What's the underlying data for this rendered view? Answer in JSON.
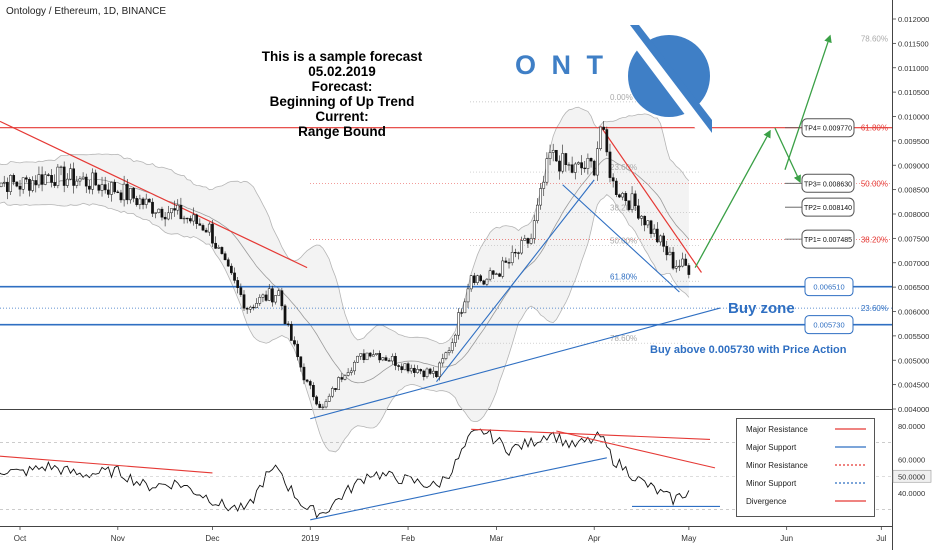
{
  "header": {
    "title": "Ontology / Ethereum, 1D, BINANCE"
  },
  "annotation": {
    "lines": [
      "This is a sample forecast",
      "05.02.2019",
      "Forecast:",
      "Beginning of Up Trend",
      "Current:",
      "Range Bound"
    ]
  },
  "brand": {
    "ticker_text": "O N T",
    "logo_color": "#3f7fc6"
  },
  "buy_zone": {
    "label": "Buy zone",
    "note": "Buy above 0.005730 with Price Action"
  },
  "colors": {
    "resistance": "#e53935",
    "support": "#2f6fc2",
    "forecast": "#3aa046",
    "price_line": "#000000",
    "fib_label": "#aaaaaa"
  },
  "chart_data": [
    {
      "type": "line",
      "title": "Ontology / Ethereum, 1D, BINANCE",
      "x_ticks": [
        "Oct",
        "Nov",
        "Dec",
        "2019",
        "Feb",
        "Mar",
        "Apr",
        "May",
        "Jun",
        "Jul"
      ],
      "y_ticks": [
        "0.012000",
        "0.011500",
        "0.011000",
        "0.010500",
        "0.010000",
        "0.009500",
        "0.009000",
        "0.008500",
        "0.008000",
        "0.007500",
        "0.007000",
        "0.006500",
        "0.006000",
        "0.005500",
        "0.005000",
        "0.004500",
        "0.004000"
      ],
      "ylim": [
        0.004,
        0.0123
      ],
      "approx_close_path": [
        [
          "Sep 21",
          0.0087
        ],
        [
          "Oct 1",
          0.0086
        ],
        [
          "Oct 10",
          0.0088
        ],
        [
          "Oct 20",
          0.0087
        ],
        [
          "Nov 1",
          0.0085
        ],
        [
          "Nov 10",
          0.0082
        ],
        [
          "Nov 20",
          0.008
        ],
        [
          "Nov 30",
          0.0077
        ],
        [
          "Dec 5",
          0.0069
        ],
        [
          "Dec 12",
          0.0061
        ],
        [
          "Dec 18",
          0.0063
        ],
        [
          "Dec 22",
          0.0064
        ],
        [
          "Dec 25",
          0.0056
        ],
        [
          "Dec 31",
          0.0045
        ],
        [
          "Jan 5",
          0.004
        ],
        [
          "Jan 12",
          0.0048
        ],
        [
          "Jan 20",
          0.0052
        ],
        [
          "Jan 31",
          0.0049
        ],
        [
          "Feb 10",
          0.0047
        ],
        [
          "Feb 15",
          0.0054
        ],
        [
          "Feb 21",
          0.0068
        ],
        [
          "Feb 25",
          0.0066
        ],
        [
          "Mar 5",
          0.007
        ],
        [
          "Mar 12",
          0.0075
        ],
        [
          "Mar 18",
          0.0092
        ],
        [
          "Mar 25",
          0.0089
        ],
        [
          "Apr 1",
          0.009
        ],
        [
          "Apr 3",
          0.0098
        ],
        [
          "Apr 7",
          0.0086
        ],
        [
          "Apr 15",
          0.0081
        ],
        [
          "Apr 22",
          0.0074
        ],
        [
          "Apr 26",
          0.007
        ],
        [
          "May 1",
          0.0069
        ]
      ],
      "fib_levels_left": [
        {
          "label": "0.00%",
          "value": 0.0103
        },
        {
          "label": "23.60%",
          "value": 0.00886
        },
        {
          "label": "38.20%",
          "value": 0.00803
        },
        {
          "label": "50.00%",
          "value": 0.00735
        },
        {
          "label": "61.80%",
          "value": 0.00662
        },
        {
          "label": "78.60%",
          "value": 0.00535
        }
      ],
      "fib_levels_right": [
        {
          "label": "78.60%",
          "value": 0.0116
        },
        {
          "label": "61.80%",
          "value": 0.00977
        },
        {
          "label": "50.00%",
          "value": 0.00863
        },
        {
          "label": "38.20%",
          "value": 0.00748
        },
        {
          "label": "23.60%",
          "value": 0.00607
        }
      ],
      "targets": [
        {
          "label": "TP4= 0.009770",
          "value": 0.00977
        },
        {
          "label": "TP3= 0.008630",
          "value": 0.00863
        },
        {
          "label": "TP2= 0.008140",
          "value": 0.00814
        },
        {
          "label": "TP1= 0.007485",
          "value": 0.007485
        }
      ],
      "buy_zone_levels": [
        {
          "label": "0.006510",
          "value": 0.00651
        },
        {
          "label": "0.005730",
          "value": 0.00573
        }
      ]
    },
    {
      "type": "line",
      "name": "Oscillator",
      "y_ticks": [
        "80.0000",
        "60.0000",
        "50.0000",
        "40.0000"
      ],
      "highlight_value": "50.0000",
      "ylim": [
        30,
        83
      ],
      "approx_path": [
        [
          "Sep 21",
          55
        ],
        [
          "Oct 1",
          52
        ],
        [
          "Oct 10",
          56
        ],
        [
          "Oct 20",
          51
        ],
        [
          "Nov 1",
          53
        ],
        [
          "Nov 10",
          44
        ],
        [
          "Nov 20",
          46
        ],
        [
          "Nov 30",
          37
        ],
        [
          "Dec 5",
          32
        ],
        [
          "Dec 12",
          30
        ],
        [
          "Dec 18",
          50
        ],
        [
          "Dec 22",
          55
        ],
        [
          "Dec 25",
          44
        ],
        [
          "Dec 31",
          30
        ],
        [
          "Jan 5",
          28
        ],
        [
          "Jan 12",
          40
        ],
        [
          "Jan 20",
          52
        ],
        [
          "Jan 31",
          48
        ],
        [
          "Feb 10",
          44
        ],
        [
          "Feb 15",
          54
        ],
        [
          "Feb 21",
          74
        ],
        [
          "Feb 25",
          77
        ],
        [
          "Mar 5",
          66
        ],
        [
          "Mar 12",
          70
        ],
        [
          "Mar 18",
          76
        ],
        [
          "Mar 25",
          68
        ],
        [
          "Apr 1",
          72
        ],
        [
          "Apr 3",
          74
        ],
        [
          "Apr 7",
          60
        ],
        [
          "Apr 15",
          48
        ],
        [
          "Apr 22",
          40
        ],
        [
          "Apr 26",
          36
        ],
        [
          "May 1",
          41
        ]
      ]
    }
  ],
  "legend": {
    "items": [
      {
        "label": "Major Resistance",
        "color": "#e53935",
        "style": "solid"
      },
      {
        "label": "Major Support",
        "color": "#2f6fc2",
        "style": "solid"
      },
      {
        "label": "Minor Resistance",
        "color": "#e53935",
        "style": "dotted"
      },
      {
        "label": "Minor Support",
        "color": "#2f6fc2",
        "style": "dotted"
      },
      {
        "label": "Divergence",
        "color": "#e53935",
        "style": "solid"
      }
    ]
  }
}
